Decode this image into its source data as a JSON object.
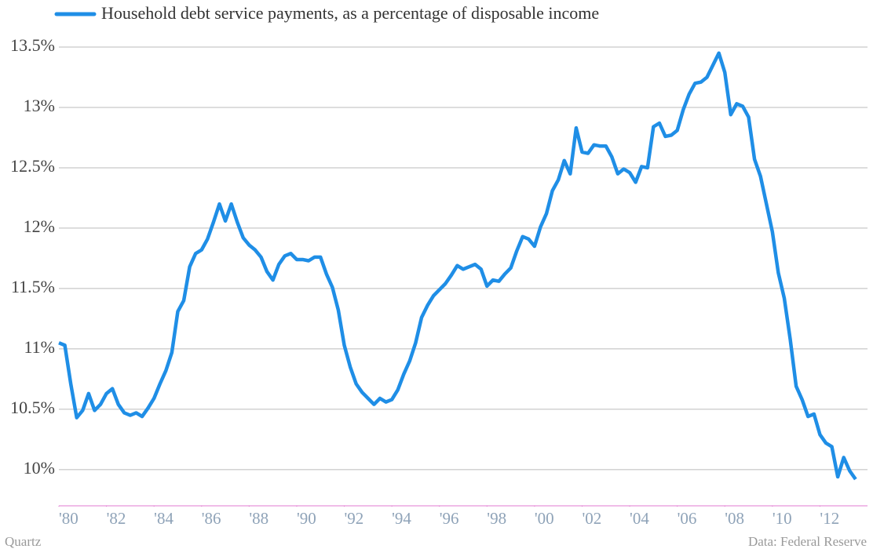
{
  "chart_data": {
    "type": "line",
    "credit": "Quartz",
    "source": "Data:  Federal Reserve",
    "x": [
      1980,
      1980.25,
      1980.5,
      1980.75,
      1981,
      1981.25,
      1981.5,
      1981.75,
      1982,
      1982.25,
      1982.5,
      1982.75,
      1983,
      1983.25,
      1983.5,
      1983.75,
      1984,
      1984.25,
      1984.5,
      1984.75,
      1985,
      1985.25,
      1985.5,
      1985.75,
      1986,
      1986.25,
      1986.5,
      1986.75,
      1987,
      1987.25,
      1987.5,
      1987.75,
      1988,
      1988.25,
      1988.5,
      1988.75,
      1989,
      1989.25,
      1989.5,
      1989.75,
      1990,
      1990.25,
      1990.5,
      1990.75,
      1991,
      1991.25,
      1991.5,
      1991.75,
      1992,
      1992.25,
      1992.5,
      1992.75,
      1993,
      1993.25,
      1993.5,
      1993.75,
      1994,
      1994.25,
      1994.5,
      1994.75,
      1995,
      1995.25,
      1995.5,
      1995.75,
      1996,
      1996.25,
      1996.5,
      1996.75,
      1997,
      1997.25,
      1997.5,
      1997.75,
      1998,
      1998.25,
      1998.5,
      1998.75,
      1999,
      1999.25,
      1999.5,
      1999.75,
      2000,
      2000.25,
      2000.5,
      2000.75,
      2001,
      2001.25,
      2001.5,
      2001.75,
      2002,
      2002.25,
      2002.5,
      2002.75,
      2003,
      2003.25,
      2003.5,
      2003.75,
      2004,
      2004.25,
      2004.5,
      2004.75,
      2005,
      2005.25,
      2005.5,
      2005.75,
      2006,
      2006.25,
      2006.5,
      2006.75,
      2007,
      2007.25,
      2007.5,
      2007.75,
      2008,
      2008.25,
      2008.5,
      2008.75,
      2009,
      2009.25,
      2009.5,
      2009.75,
      2010,
      2010.25,
      2010.5,
      2010.75,
      2011,
      2011.25,
      2011.5,
      2011.75,
      2012,
      2012.25,
      2012.5,
      2012.75,
      2013,
      2013.25,
      2013.5
    ],
    "series": [
      {
        "name": "Household debt service payments, as a percentage of disposable income",
        "color": "#1f8ee6",
        "values": [
          11.05,
          11.03,
          10.71,
          10.43,
          10.49,
          10.63,
          10.49,
          10.54,
          10.63,
          10.67,
          10.54,
          10.47,
          10.45,
          10.47,
          10.44,
          10.51,
          10.59,
          10.71,
          10.82,
          10.97,
          11.31,
          11.4,
          11.68,
          11.79,
          11.82,
          11.91,
          12.05,
          12.2,
          12.06,
          12.2,
          12.05,
          11.92,
          11.86,
          11.82,
          11.76,
          11.64,
          11.57,
          11.7,
          11.77,
          11.79,
          11.74,
          11.74,
          11.73,
          11.76,
          11.76,
          11.62,
          11.51,
          11.32,
          11.03,
          10.85,
          10.71,
          10.64,
          10.59,
          10.54,
          10.59,
          10.56,
          10.58,
          10.66,
          10.79,
          10.9,
          11.05,
          11.26,
          11.36,
          11.44,
          11.49,
          11.54,
          11.61,
          11.69,
          11.66,
          11.68,
          11.7,
          11.66,
          11.52,
          11.57,
          11.56,
          11.62,
          11.67,
          11.81,
          11.93,
          11.91,
          11.85,
          12.01,
          12.12,
          12.31,
          12.4,
          12.56,
          12.45,
          12.83,
          12.63,
          12.62,
          12.69,
          12.68,
          12.68,
          12.59,
          12.45,
          12.49,
          12.46,
          12.38,
          12.51,
          12.5,
          12.84,
          12.87,
          12.76,
          12.77,
          12.81,
          12.98,
          13.11,
          13.2,
          13.21,
          13.25,
          13.35,
          13.45,
          13.29,
          12.94,
          13.03,
          13.01,
          12.92,
          12.57,
          12.43,
          12.2,
          11.97,
          11.63,
          11.42,
          11.08,
          10.69,
          10.58,
          10.44,
          10.46,
          10.29,
          10.22,
          10.19,
          9.94,
          10.1,
          9.99,
          9.92
        ]
      }
    ],
    "xlim": [
      1980,
      2014
    ],
    "ylim": [
      9.7,
      13.63
    ],
    "xticks": [
      {
        "value": 1980,
        "label": "'80"
      },
      {
        "value": 1982,
        "label": "'82"
      },
      {
        "value": 1984,
        "label": "'84"
      },
      {
        "value": 1986,
        "label": "'86"
      },
      {
        "value": 1988,
        "label": "'88"
      },
      {
        "value": 1990,
        "label": "'90"
      },
      {
        "value": 1992,
        "label": "'92"
      },
      {
        "value": 1994,
        "label": "'94"
      },
      {
        "value": 1996,
        "label": "'96"
      },
      {
        "value": 1998,
        "label": "'98"
      },
      {
        "value": 2000,
        "label": "'00"
      },
      {
        "value": 2002,
        "label": "'02"
      },
      {
        "value": 2004,
        "label": "'04"
      },
      {
        "value": 2006,
        "label": "'06"
      },
      {
        "value": 2008,
        "label": "'08"
      },
      {
        "value": 2010,
        "label": "'10"
      },
      {
        "value": 2012,
        "label": "'12"
      }
    ],
    "yticks": [
      {
        "value": 10,
        "label": "10%"
      },
      {
        "value": 10.5,
        "label": "10.5%"
      },
      {
        "value": 11,
        "label": "11%"
      },
      {
        "value": 11.5,
        "label": "11.5%"
      },
      {
        "value": 12,
        "label": "12%"
      },
      {
        "value": 12.5,
        "label": "12.5%"
      },
      {
        "value": 13,
        "label": "13%"
      },
      {
        "value": 13.5,
        "label": "13.5%"
      }
    ],
    "grid": true
  }
}
